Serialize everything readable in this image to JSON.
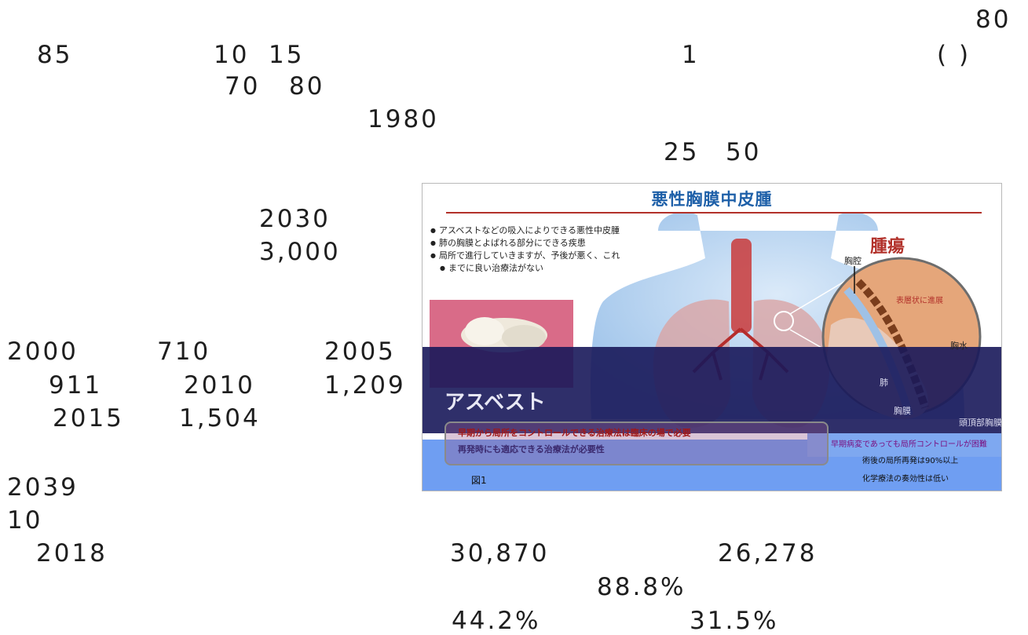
{
  "text": {
    "n80a": "80",
    "n85": "85",
    "n10": "10",
    "n15": "15",
    "n1": "1",
    "paren": "(      )",
    "n70": "70",
    "n80b": "80",
    "n1980": "1980",
    "n25": "25",
    "n50": "50",
    "n2030": "2030",
    "n3000": "3,000",
    "n2000": "2000",
    "n710": "710",
    "n2005": "2005",
    "n911": "911",
    "n2010": "2010",
    "n1209": "1,209",
    "n2015": "2015",
    "n1504": "1,504",
    "n2039": "2039",
    "n10b": "10",
    "n2018": "2018",
    "n30870": "30,870",
    "n26278": "26,278",
    "p888": "88.8%",
    "p442": "44.2%",
    "p315": "31.5%"
  },
  "figure": {
    "title": "悪性胸膜中皮腫",
    "bullets": [
      "アスベストなどの吸入によりできる悪性中皮腫",
      "肺の胸膜とよばれる部分にできる疾患",
      "局所で進行していきますが、予後が悪く、これ",
      "までに良い治療法がない"
    ],
    "asbestos_label": "アスベスト",
    "tumor_label": "腫瘍",
    "chest_cavity_label": "胸腔",
    "superficial_label": "表層状に進展",
    "pleural_effusion_label": "胸水",
    "lung_label": "肺",
    "pleura_label": "胸膜",
    "parietal_label": "頭頂部胸膜",
    "note_main": "早期から局所をコントロールできる治療法は臨床の場で必要",
    "note_second": "再発時にも適応できる治療法が必要性",
    "note_right_1": "早期病変であっても局所コントロールが困難",
    "note_right_2": "術後の局所再発は90%以上",
    "note_right_3": "化学療法の奏効性は低い",
    "figure_label": "図1",
    "colors": {
      "title": "#1d5fa8",
      "rule": "#b2312a",
      "tumor": "#b2312a",
      "glitch_blue": "#6f9ef2",
      "glitch_navy": "#18185a"
    }
  }
}
